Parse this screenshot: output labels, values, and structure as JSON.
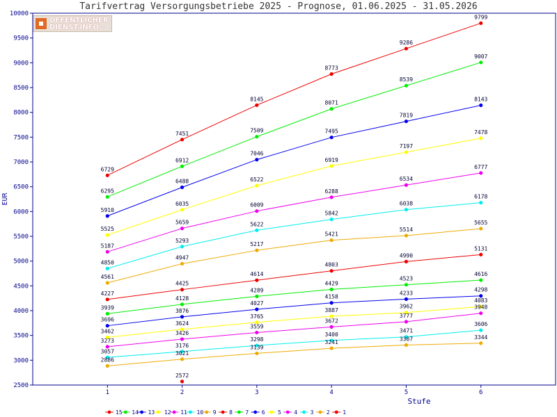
{
  "chart_data": {
    "type": "line",
    "title": "Tarifvertrag Versorgungsbetriebe 2025 - Prognose, 01.06.2025 - 31.05.2026",
    "xlabel": "Stufe",
    "ylabel": "EUR",
    "x": [
      1,
      2,
      3,
      4,
      5,
      6
    ],
    "ylim": [
      2500,
      10000
    ],
    "yticks": [
      2500,
      3000,
      3500,
      4000,
      4500,
      5000,
      5500,
      6000,
      6500,
      7000,
      7500,
      8000,
      8500,
      9000,
      9500,
      10000
    ],
    "grid": false,
    "legend_position": "bottom",
    "logo_text": [
      "OFFENTLICHER",
      "DIENST.INFO"
    ],
    "series": [
      {
        "name": "15",
        "color": "#ee0000",
        "values": [
          6729,
          7451,
          8145,
          8773,
          9286,
          9799
        ]
      },
      {
        "name": "14",
        "color": "#00ee00",
        "values": [
          6295,
          6912,
          7509,
          8071,
          8539,
          9007
        ]
      },
      {
        "name": "13",
        "color": "#0000ee",
        "values": [
          5910,
          6488,
          7046,
          7495,
          7819,
          8143
        ]
      },
      {
        "name": "12",
        "color": "#ffff00",
        "values": [
          5525,
          6035,
          6522,
          6919,
          7197,
          7478
        ]
      },
      {
        "name": "11",
        "color": "#ee00ee",
        "values": [
          5187,
          5659,
          6009,
          6288,
          6534,
          6777
        ]
      },
      {
        "name": "10",
        "color": "#00eeee",
        "values": [
          4850,
          5293,
          5622,
          5842,
          6038,
          6178
        ]
      },
      {
        "name": "9",
        "color": "#eeaa00",
        "values": [
          4561,
          4947,
          5217,
          5421,
          5514,
          5655
        ]
      },
      {
        "name": "8",
        "color": "#ee0000",
        "values": [
          4227,
          4425,
          4614,
          4803,
          4990,
          5131
        ]
      },
      {
        "name": "7",
        "color": "#00ee00",
        "values": [
          3939,
          4128,
          4289,
          4429,
          4523,
          4616
        ]
      },
      {
        "name": "6",
        "color": "#0000ee",
        "values": [
          3696,
          3876,
          4027,
          4158,
          4233,
          4298
        ]
      },
      {
        "name": "5",
        "color": "#ffff00",
        "values": [
          3462,
          3624,
          3765,
          3887,
          3962,
          4083
        ]
      },
      {
        "name": "4",
        "color": "#ee00ee",
        "values": [
          3273,
          3426,
          3559,
          3672,
          3777,
          3948
        ]
      },
      {
        "name": "3",
        "color": "#00eeee",
        "values": [
          3057,
          3176,
          3298,
          3400,
          3471,
          3606
        ]
      },
      {
        "name": "2",
        "color": "#eeaa00",
        "values": [
          2886,
          3021,
          3139,
          3241,
          3307,
          3344
        ]
      },
      {
        "name": "1",
        "color": "#ee0000",
        "values": [
          null,
          2572,
          null,
          null,
          null,
          null
        ]
      }
    ]
  }
}
